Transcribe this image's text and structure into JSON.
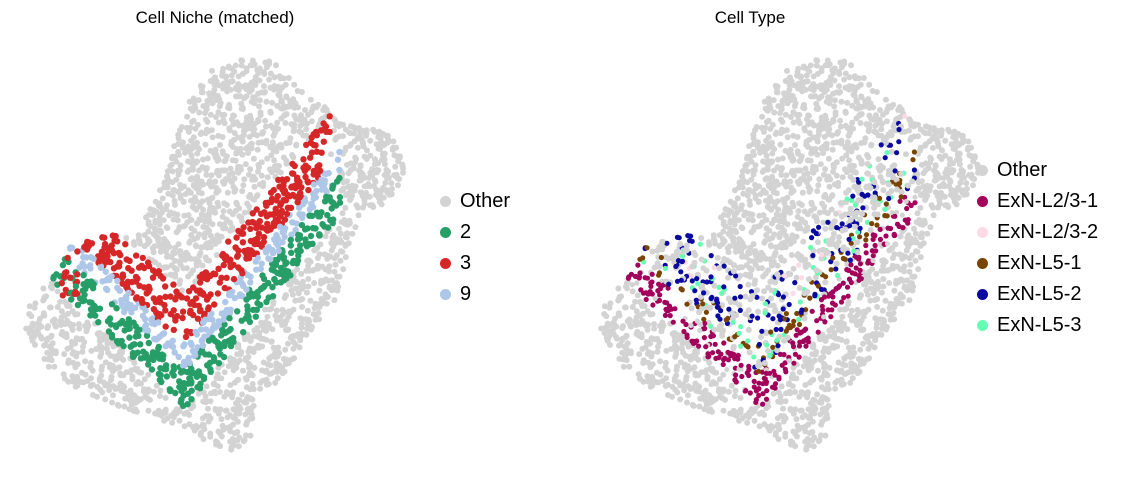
{
  "chart_data": [
    {
      "type": "scatter",
      "title": "Cell Niche (matched)",
      "legend_position": "right",
      "grid": false,
      "legend": [
        {
          "label": "Other",
          "color": "#d3d3d3"
        },
        {
          "label": "2",
          "color": "#279e68"
        },
        {
          "label": "3",
          "color": "#d62728"
        },
        {
          "label": "9",
          "color": "#aec7e8"
        }
      ]
    },
    {
      "type": "scatter",
      "title": "Cell Type",
      "legend_position": "right",
      "grid": false,
      "legend": [
        {
          "label": "Other",
          "color": "#d3d3d3"
        },
        {
          "label": "ExN-L2/3-1",
          "color": "#a2005a"
        },
        {
          "label": "ExN-L2/3-2",
          "color": "#ffd9e6"
        },
        {
          "label": "ExN-L5-1",
          "color": "#7a4400"
        },
        {
          "label": "ExN-L5-2",
          "color": "#0a0aa0"
        },
        {
          "label": "ExN-L5-3",
          "color": "#66ffb3"
        }
      ]
    }
  ]
}
